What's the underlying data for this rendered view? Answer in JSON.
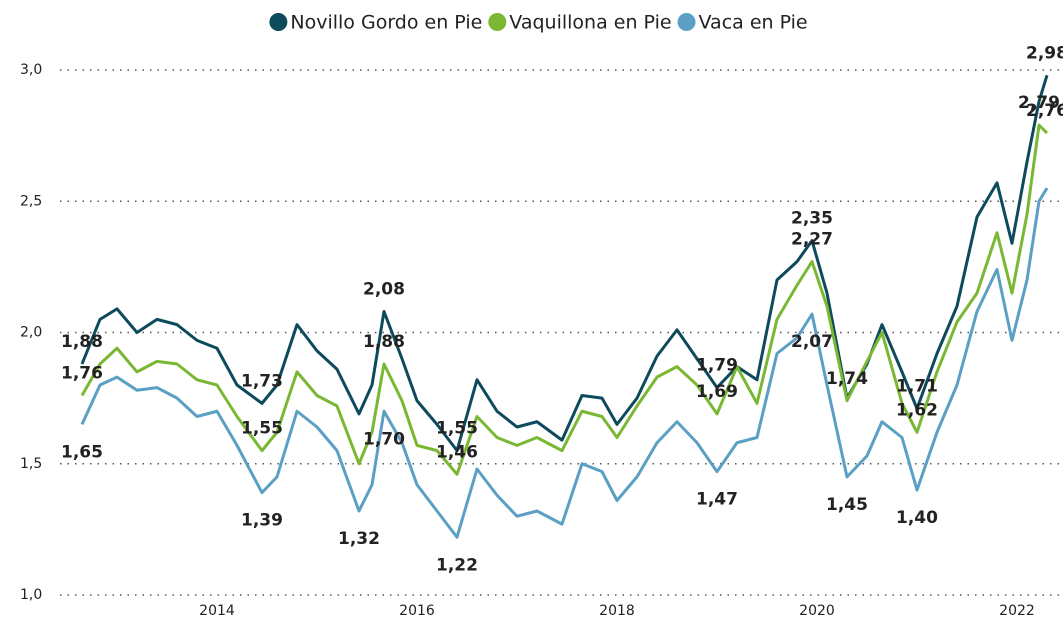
{
  "chart_data": {
    "type": "line",
    "x": [
      2012.65,
      2012.83,
      2013.0,
      2013.2,
      2013.4,
      2013.6,
      2013.8,
      2014.0,
      2014.2,
      2014.45,
      2014.6,
      2014.8,
      2015.0,
      2015.2,
      2015.42,
      2015.55,
      2015.67,
      2015.85,
      2016.0,
      2016.2,
      2016.4,
      2016.6,
      2016.8,
      2017.0,
      2017.2,
      2017.45,
      2017.65,
      2017.85,
      2018.0,
      2018.2,
      2018.4,
      2018.6,
      2018.8,
      2019.0,
      2019.2,
      2019.4,
      2019.6,
      2019.8,
      2019.95,
      2020.1,
      2020.3,
      2020.5,
      2020.65,
      2020.85,
      2021.0,
      2021.2,
      2021.4,
      2021.6,
      2021.8,
      2021.95,
      2022.1,
      2022.22,
      2022.3
    ],
    "series": [
      {
        "name": "Novillo Gordo en Pie",
        "color": "#0d4a5c",
        "values": [
          1.88,
          2.05,
          2.09,
          2.0,
          2.05,
          2.03,
          1.97,
          1.94,
          1.8,
          1.73,
          1.8,
          2.03,
          1.93,
          1.86,
          1.69,
          1.8,
          2.08,
          1.9,
          1.74,
          1.65,
          1.55,
          1.82,
          1.7,
          1.64,
          1.66,
          1.59,
          1.76,
          1.75,
          1.65,
          1.75,
          1.91,
          2.01,
          1.9,
          1.79,
          1.87,
          1.82,
          2.2,
          2.27,
          2.35,
          2.15,
          1.75,
          1.88,
          2.03,
          1.85,
          1.71,
          1.92,
          2.1,
          2.44,
          2.57,
          2.34,
          2.65,
          2.88,
          2.98
        ],
        "value_labels": [
          "1,88",
          null,
          null,
          null,
          null,
          null,
          null,
          null,
          null,
          "1,73",
          null,
          null,
          null,
          null,
          null,
          null,
          "2,08",
          null,
          null,
          null,
          "1,55",
          null,
          null,
          null,
          null,
          null,
          null,
          null,
          null,
          null,
          null,
          null,
          null,
          "1,79",
          null,
          null,
          null,
          null,
          "2,35",
          null,
          null,
          null,
          null,
          null,
          "1,71",
          null,
          null,
          null,
          null,
          null,
          null,
          null,
          "2,98"
        ]
      },
      {
        "name": "Vaquillona en Pie",
        "color": "#7ab833",
        "values": [
          1.76,
          1.88,
          1.94,
          1.85,
          1.89,
          1.88,
          1.82,
          1.8,
          1.68,
          1.55,
          1.62,
          1.85,
          1.76,
          1.72,
          1.5,
          1.62,
          1.88,
          1.74,
          1.57,
          1.55,
          1.46,
          1.68,
          1.6,
          1.57,
          1.6,
          1.55,
          1.7,
          1.68,
          1.6,
          1.72,
          1.83,
          1.87,
          1.8,
          1.69,
          1.87,
          1.73,
          2.05,
          2.18,
          2.27,
          2.1,
          1.74,
          1.89,
          2.0,
          1.73,
          1.62,
          1.85,
          2.04,
          2.15,
          2.38,
          2.15,
          2.45,
          2.79,
          2.76
        ],
        "value_labels": [
          "1,76",
          null,
          null,
          null,
          null,
          null,
          null,
          null,
          null,
          "1,55",
          null,
          null,
          null,
          null,
          null,
          null,
          "1,88",
          null,
          null,
          null,
          "1,46",
          null,
          null,
          null,
          null,
          null,
          null,
          null,
          null,
          null,
          null,
          null,
          null,
          "1,69",
          null,
          null,
          null,
          null,
          "2,27",
          null,
          "1,74",
          null,
          null,
          null,
          "1,62",
          null,
          null,
          null,
          null,
          null,
          null,
          "2,79",
          "2,76"
        ]
      },
      {
        "name": "Vaca en Pie",
        "color": "#5b9fc4",
        "values": [
          1.65,
          1.8,
          1.83,
          1.78,
          1.79,
          1.75,
          1.68,
          1.7,
          1.57,
          1.39,
          1.45,
          1.7,
          1.64,
          1.55,
          1.32,
          1.42,
          1.7,
          1.58,
          1.42,
          1.32,
          1.22,
          1.48,
          1.38,
          1.3,
          1.32,
          1.27,
          1.5,
          1.47,
          1.36,
          1.45,
          1.58,
          1.66,
          1.58,
          1.47,
          1.58,
          1.6,
          1.92,
          1.98,
          2.07,
          1.8,
          1.45,
          1.53,
          1.66,
          1.6,
          1.4,
          1.62,
          1.8,
          2.08,
          2.24,
          1.97,
          2.2,
          2.5,
          2.55
        ],
        "value_labels": [
          "1,65",
          null,
          null,
          null,
          null,
          null,
          null,
          null,
          null,
          "1,39",
          null,
          null,
          null,
          null,
          "1,32",
          null,
          "1,70",
          null,
          null,
          null,
          "1,22",
          null,
          null,
          null,
          null,
          null,
          null,
          null,
          null,
          null,
          null,
          null,
          null,
          "1,47",
          null,
          null,
          null,
          null,
          "2,07",
          null,
          "1,45",
          null,
          null,
          null,
          "1,40",
          null,
          null,
          null,
          null,
          null,
          null,
          null,
          null
        ]
      }
    ],
    "xlim": [
      2012.43,
      2022.43
    ],
    "xticks": [
      2014,
      2016,
      2018,
      2020,
      2022
    ],
    "ylim": [
      1.0,
      3.0
    ],
    "yticks": [
      {
        "value": 1.0,
        "label": "1,0"
      },
      {
        "value": 1.5,
        "label": "1,5"
      },
      {
        "value": 2.0,
        "label": "2,0"
      },
      {
        "value": 2.5,
        "label": "2,5"
      },
      {
        "value": 3.0,
        "label": "3,0"
      }
    ],
    "grid": true,
    "legend": "top"
  }
}
